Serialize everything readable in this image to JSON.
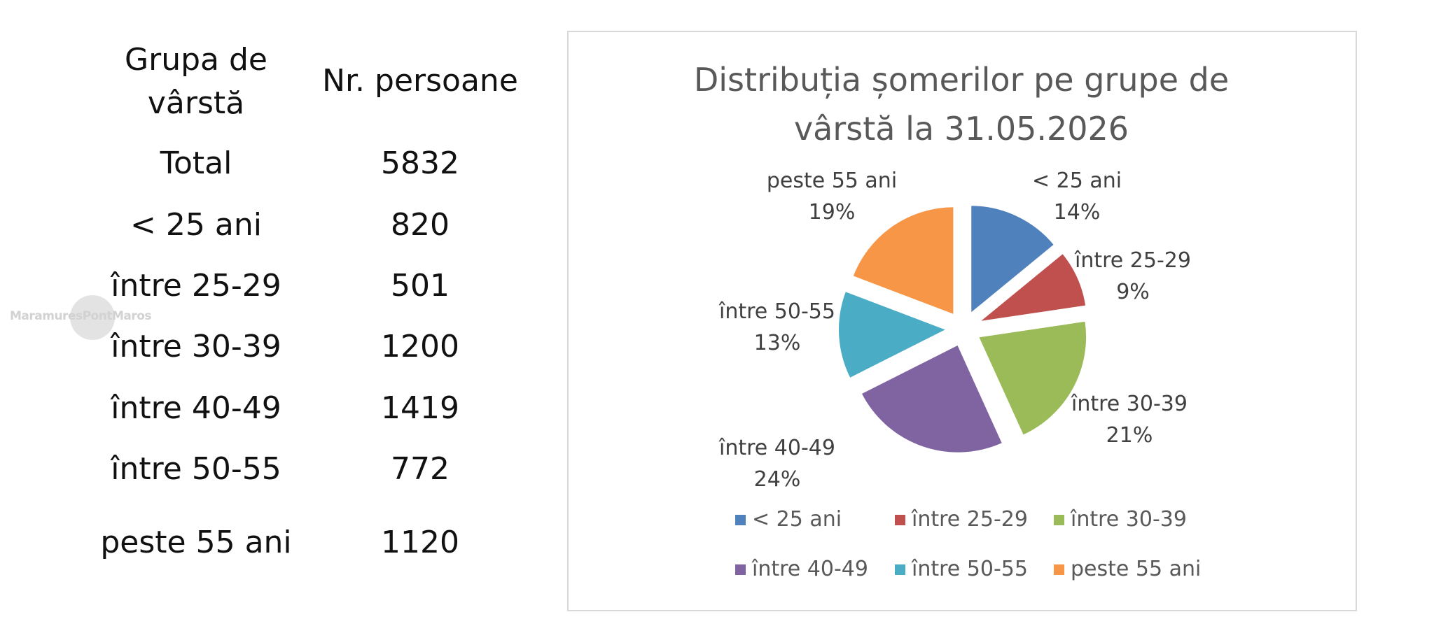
{
  "table": {
    "headers": [
      "Grupa de\nvârstă",
      "Nr. persoane"
    ],
    "header_col1_line1": "Grupa de",
    "header_col1_line2": "vârstă",
    "header_col2": "Nr. persoane",
    "rows": [
      {
        "group": "Total",
        "count": "5832"
      },
      {
        "group": "< 25 ani",
        "count": "820"
      },
      {
        "group": "între 25-29",
        "count": "501"
      },
      {
        "group": "între 30-39",
        "count": "1200"
      },
      {
        "group": "între 40-49",
        "count": "1419"
      },
      {
        "group": "între 50-55",
        "count": "772"
      },
      {
        "group": "peste 55 ani",
        "count": "1120"
      }
    ]
  },
  "watermark": {
    "text": "MaramuresPontMaros"
  },
  "chart_data": {
    "type": "pie",
    "exploded": true,
    "title_line1": "Distribuția șomerilor pe grupe de",
    "title_line2": "vârstă la 31.05.2026",
    "legend_placement": "bottom",
    "categories": [
      "< 25 ani",
      "între 25-29",
      "între 30-39",
      "între 40-49",
      "între 50-55",
      "peste 55 ani"
    ],
    "values": [
      820,
      501,
      1200,
      1419,
      772,
      1120
    ],
    "percent_labels": [
      "14%",
      "9%",
      "21%",
      "24%",
      "13%",
      "19%"
    ],
    "colors": [
      "#4f81bd",
      "#c0504d",
      "#9bbb59",
      "#8064a2",
      "#4bacc6",
      "#f79646"
    ]
  }
}
